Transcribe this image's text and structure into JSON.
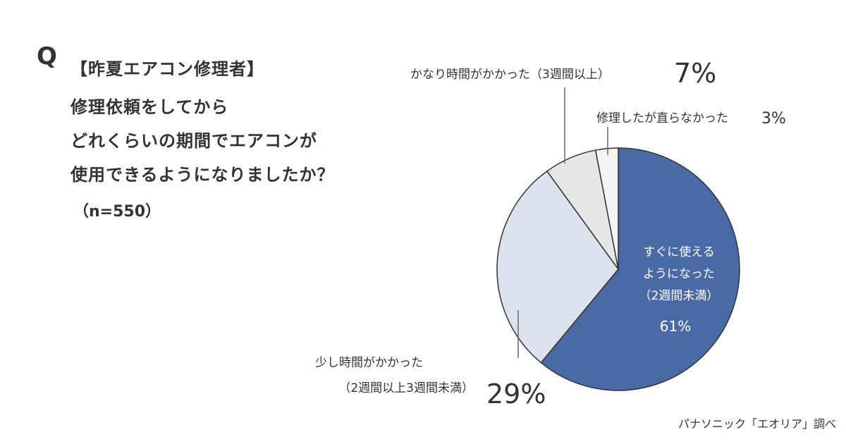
{
  "question": {
    "mark": "Q",
    "title": "【昨夏エアコン修理者】",
    "lines": [
      "修理依頼をしてから",
      "どれくらいの期間でエアコンが",
      "使用できるようになりましたか？"
    ],
    "sample_size": "（n=550）"
  },
  "chart_data": {
    "type": "pie",
    "start_angle_deg": 0,
    "direction": "clockwise",
    "slices": [
      {
        "label_lines": [
          "すぐに使える",
          "ようになった",
          "（2週間未満）"
        ],
        "value": 61,
        "value_label": "61%",
        "color": "#4a6aa5",
        "label_position": "inside"
      },
      {
        "label_lines": [
          "少し時間がかかった",
          "（2週間以上3週間未満）"
        ],
        "value": 29,
        "value_label": "29%",
        "color": "#dde2ef",
        "label_position": "outside-bottom-left"
      },
      {
        "label_lines": [
          "かなり時間がかかった（3週間以上）"
        ],
        "value": 7,
        "value_label": "7%",
        "color": "#e6e6e6",
        "label_position": "outside-top"
      },
      {
        "label_lines": [
          "修理したが直らなかった"
        ],
        "value": 3,
        "value_label": "3%",
        "color": "#f4f4f4",
        "label_position": "outside-top-right"
      }
    ]
  },
  "source": "パナソニック「エオリア」調べ"
}
